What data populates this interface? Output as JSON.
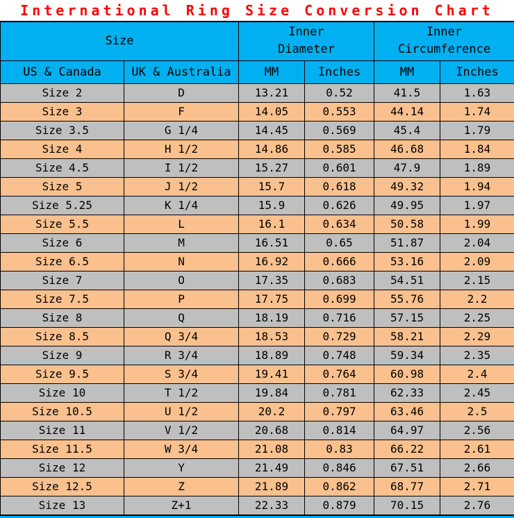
{
  "title": "International Ring Size Conversion Chart",
  "colors": {
    "title": "#FF0000",
    "header_bg": "#00B0F0",
    "row_gray": "#BFBFBF",
    "row_orange": "#FAC08E",
    "border": "#000000"
  },
  "header": {
    "groups": [
      {
        "line1": "Size",
        "line2": ""
      },
      {
        "line1": "Inner",
        "line2": "Diameter"
      },
      {
        "line1": "Inner",
        "line2": "Circumference"
      }
    ]
  },
  "chart_data": {
    "type": "table",
    "title": "International Ring Size Conversion Chart",
    "column_groups": [
      {
        "label": "Size",
        "span": 2
      },
      {
        "label": "Inner Diameter",
        "span": 2
      },
      {
        "label": "Inner Circumference",
        "span": 2
      }
    ],
    "columns": [
      "US & Canada",
      "UK & Australia",
      "MM",
      "Inches",
      "MM",
      "Inches"
    ],
    "rows": [
      [
        "Size 2",
        "D",
        "13.21",
        "0.52",
        "41.5",
        "1.63"
      ],
      [
        "Size 3",
        "F",
        "14.05",
        "0.553",
        "44.14",
        "1.74"
      ],
      [
        "Size 3.5",
        "G 1/4",
        "14.45",
        "0.569",
        "45.4",
        "1.79"
      ],
      [
        "Size 4",
        "H 1/2",
        "14.86",
        "0.585",
        "46.68",
        "1.84"
      ],
      [
        "Size 4.5",
        "I 1/2",
        "15.27",
        "0.601",
        "47.9",
        "1.89"
      ],
      [
        "Size 5",
        "J 1/2",
        "15.7",
        "0.618",
        "49.32",
        "1.94"
      ],
      [
        "Size 5.25",
        "K 1/4",
        "15.9",
        "0.626",
        "49.95",
        "1.97"
      ],
      [
        "Size 5.5",
        "L",
        "16.1",
        "0.634",
        "50.58",
        "1.99"
      ],
      [
        "Size 6",
        "M",
        "16.51",
        "0.65",
        "51.87",
        "2.04"
      ],
      [
        "Size 6.5",
        "N",
        "16.92",
        "0.666",
        "53.16",
        "2.09"
      ],
      [
        "Size 7",
        "O",
        "17.35",
        "0.683",
        "54.51",
        "2.15"
      ],
      [
        "Size 7.5",
        "P",
        "17.75",
        "0.699",
        "55.76",
        "2.2"
      ],
      [
        "Size 8",
        "Q",
        "18.19",
        "0.716",
        "57.15",
        "2.25"
      ],
      [
        "Size 8.5",
        "Q 3/4",
        "18.53",
        "0.729",
        "58.21",
        "2.29"
      ],
      [
        "Size 9",
        "R 3/4",
        "18.89",
        "0.748",
        "59.34",
        "2.35"
      ],
      [
        "Size 9.5",
        "S 3/4",
        "19.41",
        "0.764",
        "60.98",
        "2.4"
      ],
      [
        "Size 10",
        "T 1/2",
        "19.84",
        "0.781",
        "62.33",
        "2.45"
      ],
      [
        "Size 10.5",
        "U 1/2",
        "20.2",
        "0.797",
        "63.46",
        "2.5"
      ],
      [
        "Size 11",
        "V 1/2",
        "20.68",
        "0.814",
        "64.97",
        "2.56"
      ],
      [
        "Size 11.5",
        "W 3/4",
        "21.08",
        "0.83",
        "66.22",
        "2.61"
      ],
      [
        "Size 12",
        "Y",
        "21.49",
        "0.846",
        "67.51",
        "2.66"
      ],
      [
        "Size 12.5",
        "Z",
        "21.89",
        "0.862",
        "68.77",
        "2.71"
      ],
      [
        "Size 13",
        "Z+1",
        "22.33",
        "0.879",
        "70.15",
        "2.76"
      ]
    ]
  }
}
